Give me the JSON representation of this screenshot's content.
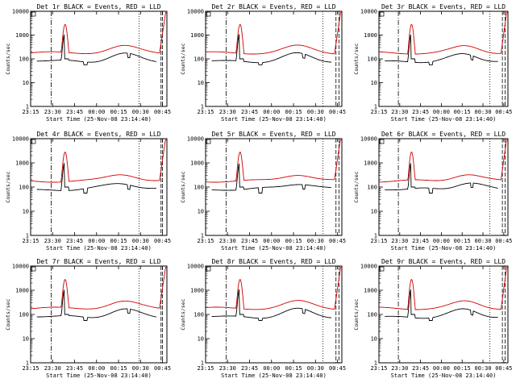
{
  "chart_data": [
    {
      "type": "line",
      "title": "Det 1r BLACK = Events, RED = LLD",
      "xlabel": "Start Time (25-Nov-08 23:14:40)",
      "ylabel": "Counts/sec",
      "ylim": [
        1,
        10000
      ],
      "yscale": "log",
      "xlim": [
        "23:15",
        "00:48"
      ],
      "x_ticks": [
        "23:15",
        "23:30",
        "23:45",
        "00:00",
        "00:15",
        "00:30",
        "00:45"
      ],
      "y_ticks": [
        "1",
        "10",
        "100",
        "1000",
        "10000"
      ],
      "series": [
        {
          "name": "Events",
          "color": "#000000"
        },
        {
          "name": "LLD",
          "color": "#d00000"
        }
      ],
      "vlines": [
        {
          "time": "23:29",
          "style": "dash-dot"
        },
        {
          "time": "00:29",
          "style": "dotted"
        },
        {
          "time": "00:44",
          "style": "dashed"
        },
        {
          "time": "00:45",
          "style": "dashed"
        }
      ]
    },
    {
      "type": "line",
      "title": "Det 2r BLACK = Events, RED = LLD",
      "xlabel": "Start Time (25-Nov-08 23:14:40)",
      "ylabel": "Counts/sec",
      "ylim": [
        1,
        10000
      ],
      "yscale": "log",
      "xlim": [
        "23:15",
        "00:48"
      ],
      "x_ticks": [
        "23:15",
        "23:30",
        "23:45",
        "00:00",
        "00:15",
        "00:30",
        "00:45"
      ],
      "y_ticks": [
        "1",
        "10",
        "100",
        "1000",
        "10000"
      ],
      "series": [
        {
          "name": "Events",
          "color": "#000000"
        },
        {
          "name": "LLD",
          "color": "#d00000"
        }
      ],
      "vlines": [
        {
          "time": "23:29",
          "style": "dash-dot"
        },
        {
          "time": "00:35",
          "style": "dotted"
        },
        {
          "time": "00:44",
          "style": "dashed"
        },
        {
          "time": "00:46",
          "style": "dashed"
        }
      ]
    },
    {
      "type": "line",
      "title": "Det 3r BLACK = Events, RED = LLD",
      "xlabel": "Start Time (25-Nov-08 23:14:40)",
      "ylabel": "Counts/sec",
      "ylim": [
        1,
        10000
      ],
      "yscale": "log",
      "xlim": [
        "23:15",
        "00:48"
      ],
      "x_ticks": [
        "23:15",
        "23:30",
        "23:45",
        "00:00",
        "00:15",
        "00:30",
        "00:45"
      ],
      "y_ticks": [
        "1",
        "10",
        "100",
        "1000",
        "10000"
      ],
      "series": [
        {
          "name": "Events",
          "color": "#000000"
        },
        {
          "name": "LLD",
          "color": "#d00000"
        }
      ],
      "vlines": [
        {
          "time": "23:29",
          "style": "dash-dot"
        },
        {
          "time": "00:35",
          "style": "dotted"
        },
        {
          "time": "00:44",
          "style": "dashed"
        },
        {
          "time": "00:46",
          "style": "dashed"
        }
      ]
    },
    {
      "type": "line",
      "title": "Det 4r BLACK = Events, RED = LLD",
      "xlabel": "Start Time (25-Nov-08 23:14:40)",
      "ylabel": "Counts/sec",
      "ylim": [
        1,
        10000
      ],
      "yscale": "log",
      "xlim": [
        "23:15",
        "00:48"
      ],
      "x_ticks": [
        "23:15",
        "23:30",
        "23:45",
        "00:00",
        "00:15",
        "00:30",
        "00:45"
      ],
      "y_ticks": [
        "1",
        "10",
        "100",
        "1000",
        "10000"
      ],
      "series": [
        {
          "name": "Events",
          "color": "#000000"
        },
        {
          "name": "LLD",
          "color": "#d00000"
        }
      ],
      "vlines": [
        {
          "time": "23:29",
          "style": "dash-dot"
        },
        {
          "time": "00:29",
          "style": "dotted"
        },
        {
          "time": "00:44",
          "style": "dashed"
        },
        {
          "time": "00:45",
          "style": "dashed"
        }
      ]
    },
    {
      "type": "line",
      "title": "Det 5r BLACK = Events, RED = LLD",
      "xlabel": "Start Time (25-Nov-08 23:14:40)",
      "ylabel": "Counts/sec",
      "ylim": [
        1,
        10000
      ],
      "yscale": "log",
      "xlim": [
        "23:15",
        "00:48"
      ],
      "x_ticks": [
        "23:15",
        "23:30",
        "23:45",
        "00:00",
        "00:15",
        "00:30",
        "00:45"
      ],
      "y_ticks": [
        "1",
        "10",
        "100",
        "1000",
        "10000"
      ],
      "series": [
        {
          "name": "Events",
          "color": "#000000"
        },
        {
          "name": "LLD",
          "color": "#d00000"
        }
      ],
      "vlines": [
        {
          "time": "23:29",
          "style": "dash-dot"
        },
        {
          "time": "00:35",
          "style": "dotted"
        },
        {
          "time": "00:44",
          "style": "dashed"
        },
        {
          "time": "00:46",
          "style": "dashed"
        }
      ]
    },
    {
      "type": "line",
      "title": "Det 6r BLACK = Events, RED = LLD",
      "xlabel": "Start Time (25-Nov-08 23:14:40)",
      "ylabel": "Counts/sec",
      "ylim": [
        1,
        10000
      ],
      "yscale": "log",
      "xlim": [
        "23:15",
        "00:48"
      ],
      "x_ticks": [
        "23:15",
        "23:30",
        "23:45",
        "00:00",
        "00:15",
        "00:30",
        "00:45"
      ],
      "y_ticks": [
        "1",
        "10",
        "100",
        "1000",
        "10000"
      ],
      "series": [
        {
          "name": "Events",
          "color": "#000000"
        },
        {
          "name": "LLD",
          "color": "#d00000"
        }
      ],
      "vlines": [
        {
          "time": "23:29",
          "style": "dash-dot"
        },
        {
          "time": "00:35",
          "style": "dotted"
        },
        {
          "time": "00:44",
          "style": "dashed"
        },
        {
          "time": "00:46",
          "style": "dashed"
        }
      ]
    },
    {
      "type": "line",
      "title": "Det 7r BLACK = Events, RED = LLD",
      "xlabel": "Start Time (25-Nov-08 23:14:40)",
      "ylabel": "Counts/sec",
      "ylim": [
        1,
        10000
      ],
      "yscale": "log",
      "xlim": [
        "23:15",
        "00:48"
      ],
      "x_ticks": [
        "23:15",
        "23:30",
        "23:45",
        "00:00",
        "00:15",
        "00:30",
        "00:45"
      ],
      "y_ticks": [
        "1",
        "10",
        "100",
        "1000",
        "10000"
      ],
      "series": [
        {
          "name": "Events",
          "color": "#000000"
        },
        {
          "name": "LLD",
          "color": "#d00000"
        }
      ],
      "vlines": [
        {
          "time": "23:29",
          "style": "dash-dot"
        },
        {
          "time": "00:29",
          "style": "dotted"
        },
        {
          "time": "00:44",
          "style": "dashed"
        },
        {
          "time": "00:45",
          "style": "dashed"
        }
      ]
    },
    {
      "type": "line",
      "title": "Det 8r BLACK = Events, RED = LLD",
      "xlabel": "Start Time (25-Nov-08 23:14:40)",
      "ylabel": "Counts/sec",
      "ylim": [
        1,
        10000
      ],
      "yscale": "log",
      "xlim": [
        "23:15",
        "00:48"
      ],
      "x_ticks": [
        "23:15",
        "23:30",
        "23:45",
        "00:00",
        "00:15",
        "00:30",
        "00:45"
      ],
      "y_ticks": [
        "1",
        "10",
        "100",
        "1000",
        "10000"
      ],
      "series": [
        {
          "name": "Events",
          "color": "#000000"
        },
        {
          "name": "LLD",
          "color": "#d00000"
        }
      ],
      "vlines": [
        {
          "time": "23:29",
          "style": "dash-dot"
        },
        {
          "time": "00:35",
          "style": "dotted"
        },
        {
          "time": "00:44",
          "style": "dashed"
        },
        {
          "time": "00:46",
          "style": "dashed"
        }
      ]
    },
    {
      "type": "line",
      "title": "Det 9r BLACK = Events, RED = LLD",
      "xlabel": "Start Time (25-Nov-08 23:14:40)",
      "ylabel": "Counts/sec",
      "ylim": [
        1,
        10000
      ],
      "yscale": "log",
      "xlim": [
        "23:15",
        "00:48"
      ],
      "x_ticks": [
        "23:15",
        "23:30",
        "23:45",
        "00:00",
        "00:15",
        "00:30",
        "00:45"
      ],
      "y_ticks": [
        "1",
        "10",
        "100",
        "1000",
        "10000"
      ],
      "series": [
        {
          "name": "Events",
          "color": "#000000"
        },
        {
          "name": "LLD",
          "color": "#d00000"
        }
      ],
      "vlines": [
        {
          "time": "23:29",
          "style": "dash-dot"
        },
        {
          "time": "00:35",
          "style": "dotted"
        },
        {
          "time": "00:44",
          "style": "dashed"
        },
        {
          "time": "00:46",
          "style": "dashed"
        }
      ]
    }
  ]
}
